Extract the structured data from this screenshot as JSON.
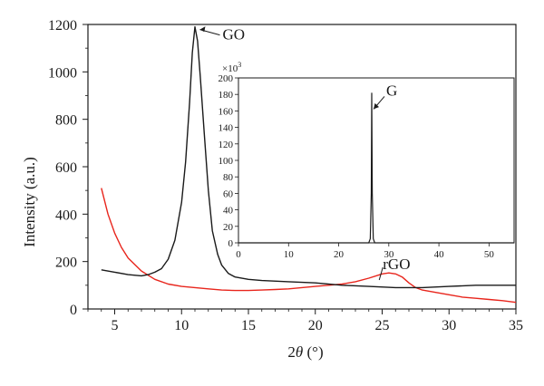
{
  "chart_data": [
    {
      "type": "line",
      "panel": "main",
      "xlabel_prefix": "2",
      "xlabel_theta": "θ",
      "xlabel_unit": " (°)",
      "ylabel": "Intensity (a.u.)",
      "xlim": [
        3,
        35
      ],
      "ylim": [
        0,
        1200
      ],
      "xticks": [
        5,
        10,
        15,
        20,
        25,
        30,
        35
      ],
      "yticks": [
        0,
        200,
        400,
        600,
        800,
        1000,
        1200
      ],
      "grid": false,
      "legend": "none",
      "series": [
        {
          "name": "GO",
          "color": "#1a1a1a",
          "x": [
            4,
            5,
            6,
            7,
            7.5,
            8,
            8.5,
            9,
            9.5,
            10,
            10.3,
            10.6,
            10.8,
            11,
            11.2,
            11.4,
            11.7,
            12,
            12.3,
            12.7,
            13,
            13.5,
            14,
            15,
            16,
            18,
            20,
            22,
            24,
            26,
            28,
            30,
            32,
            34,
            35
          ],
          "y": [
            165,
            155,
            145,
            140,
            145,
            155,
            170,
            210,
            290,
            450,
            620,
            870,
            1080,
            1190,
            1130,
            980,
            740,
            500,
            330,
            230,
            185,
            150,
            135,
            125,
            120,
            115,
            110,
            100,
            95,
            90,
            90,
            95,
            100,
            100,
            100
          ]
        },
        {
          "name": "rGO",
          "color": "#e8251c",
          "x": [
            4,
            4.5,
            5,
            5.5,
            6,
            7,
            8,
            9,
            10,
            11,
            12,
            13,
            14,
            15,
            16,
            17,
            18,
            19,
            20,
            21,
            22,
            23,
            24,
            25,
            25.5,
            26,
            26.5,
            27,
            27.5,
            28,
            29,
            30,
            31,
            32,
            33,
            34,
            35
          ],
          "y": [
            510,
            400,
            320,
            260,
            215,
            160,
            125,
            105,
            95,
            90,
            85,
            80,
            78,
            78,
            80,
            82,
            85,
            90,
            95,
            100,
            105,
            115,
            130,
            148,
            152,
            148,
            135,
            110,
            90,
            80,
            70,
            60,
            50,
            45,
            40,
            35,
            28
          ]
        }
      ],
      "annotations": [
        {
          "text": "GO",
          "x": 11.1,
          "y": 1190
        },
        {
          "text": "rGO",
          "x": 26,
          "y": 130
        }
      ]
    },
    {
      "type": "line",
      "panel": "inset",
      "xlim": [
        0,
        55
      ],
      "ylim": [
        0,
        200
      ],
      "xticks": [
        0,
        10,
        20,
        30,
        40,
        50
      ],
      "yticks": [
        0,
        20,
        40,
        60,
        80,
        100,
        120,
        140,
        160,
        180,
        200
      ],
      "y_multiplier_label_base": "×10",
      "y_multiplier_label_exp": "3",
      "series": [
        {
          "name": "G",
          "color": "#1a1a1a",
          "x": [
            0,
            26,
            26.3,
            26.5,
            26.6,
            26.7,
            26.9,
            27.2,
            55
          ],
          "y": [
            0,
            0,
            5,
            60,
            182,
            60,
            5,
            0,
            0
          ]
        }
      ],
      "annotations": [
        {
          "text": "G",
          "x": 26.6,
          "y": 160
        }
      ]
    }
  ]
}
